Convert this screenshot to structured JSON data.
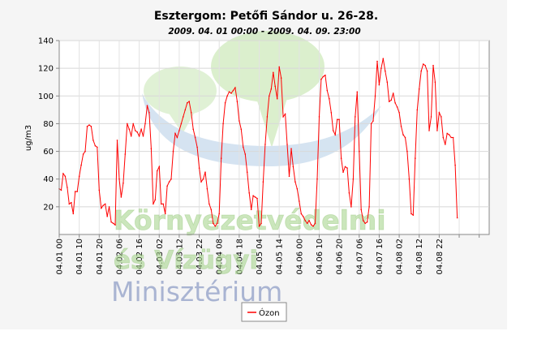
{
  "chart_data": {
    "type": "line",
    "title": "Esztergom: Petőfi Sándor u. 26-28.",
    "subtitle": "2009. 04. 01 00:00 - 2009. 04. 09. 23:00",
    "ylabel": "ug/m3",
    "xlabel": "",
    "ylim": [
      0,
      140
    ],
    "yticks": [
      20,
      40,
      60,
      80,
      100,
      120,
      140
    ],
    "xlim": [
      0,
      215
    ],
    "x_tick_hours": [
      0,
      10,
      20,
      30,
      40,
      50,
      60,
      70,
      80,
      90,
      100,
      110,
      120,
      130,
      140,
      150,
      160,
      170,
      180,
      190,
      200,
      210
    ],
    "x_tick_labels": [
      "04.01 00",
      "04.01 10",
      "04.01 20",
      "04.02 06",
      "04.02 16",
      "04.03 02",
      "04.03 12",
      "04.03 22",
      "04.04 08",
      "04.04 18",
      "04.05 04",
      "04.05 14",
      "04.06 00",
      "04.06 10",
      "04.06 20",
      "04.07 06",
      "04.07 16",
      "04.08 02",
      "04.08 12",
      "04.08 22",
      "",
      ""
    ],
    "grid": true,
    "legend": "bottom-center",
    "series": [
      {
        "name": "Ózon",
        "color": "#ff0000",
        "points": [
          [
            0,
            33
          ],
          [
            1,
            32
          ],
          [
            2,
            44
          ],
          [
            3,
            42
          ],
          [
            4,
            34
          ],
          [
            5,
            22
          ],
          [
            6,
            23
          ],
          [
            7,
            15
          ],
          [
            8,
            31
          ],
          [
            9,
            31
          ],
          [
            10,
            42
          ],
          [
            11,
            50
          ],
          [
            12,
            58
          ],
          [
            13,
            60
          ],
          [
            14,
            78
          ],
          [
            15,
            79
          ],
          [
            16,
            78
          ],
          [
            17,
            68
          ],
          [
            18,
            64
          ],
          [
            19,
            63
          ],
          [
            20,
            32
          ],
          [
            21,
            19
          ],
          [
            22,
            21
          ],
          [
            23,
            22
          ],
          [
            24,
            13
          ],
          [
            25,
            20
          ],
          [
            26,
            9
          ],
          [
            27,
            8
          ],
          [
            28,
            7
          ],
          [
            29,
            68
          ],
          [
            30,
            40
          ],
          [
            31,
            27
          ],
          [
            32,
            37
          ],
          [
            33,
            58
          ],
          [
            34,
            80
          ],
          [
            35,
            76
          ],
          [
            36,
            71
          ],
          [
            37,
            80
          ],
          [
            38,
            75
          ],
          [
            39,
            74
          ],
          [
            40,
            71
          ],
          [
            41,
            76
          ],
          [
            42,
            71
          ],
          [
            43,
            80
          ],
          [
            44,
            93
          ],
          [
            45,
            88
          ],
          [
            46,
            62
          ],
          [
            47,
            22
          ],
          [
            48,
            25
          ],
          [
            49,
            46
          ],
          [
            50,
            49
          ],
          [
            51,
            22
          ],
          [
            52,
            22
          ],
          [
            53,
            15
          ],
          [
            54,
            35
          ],
          [
            55,
            38
          ],
          [
            56,
            40
          ],
          [
            57,
            60
          ],
          [
            58,
            73
          ],
          [
            59,
            70
          ],
          [
            60,
            75
          ],
          [
            61,
            80
          ],
          [
            62,
            85
          ],
          [
            63,
            90
          ],
          [
            64,
            95
          ],
          [
            65,
            96
          ],
          [
            66,
            88
          ],
          [
            67,
            76
          ],
          [
            68,
            70
          ],
          [
            69,
            63
          ],
          [
            70,
            48
          ],
          [
            71,
            38
          ],
          [
            72,
            40
          ],
          [
            73,
            45
          ],
          [
            74,
            33
          ],
          [
            75,
            22
          ],
          [
            76,
            18
          ],
          [
            77,
            8
          ],
          [
            78,
            6
          ],
          [
            79,
            8
          ],
          [
            80,
            15
          ],
          [
            81,
            55
          ],
          [
            82,
            80
          ],
          [
            83,
            95
          ],
          [
            84,
            100
          ],
          [
            85,
            103
          ],
          [
            86,
            102
          ],
          [
            87,
            104
          ],
          [
            88,
            106
          ],
          [
            89,
            96
          ],
          [
            90,
            82
          ],
          [
            91,
            76
          ],
          [
            92,
            63
          ],
          [
            93,
            58
          ],
          [
            94,
            45
          ],
          [
            95,
            30
          ],
          [
            96,
            18
          ],
          [
            97,
            28
          ],
          [
            98,
            27
          ],
          [
            99,
            26
          ],
          [
            100,
            6
          ],
          [
            101,
            8
          ],
          [
            102,
            38
          ],
          [
            103,
            65
          ],
          [
            104,
            85
          ],
          [
            105,
            100
          ],
          [
            106,
            105
          ],
          [
            107,
            117
          ],
          [
            108,
            107
          ],
          [
            109,
            98
          ],
          [
            110,
            121
          ],
          [
            111,
            113
          ],
          [
            112,
            85
          ],
          [
            113,
            87
          ],
          [
            114,
            65
          ],
          [
            115,
            42
          ],
          [
            116,
            62
          ],
          [
            117,
            49
          ],
          [
            118,
            38
          ],
          [
            119,
            33
          ],
          [
            120,
            24
          ],
          [
            121,
            15
          ],
          [
            122,
            13
          ],
          [
            123,
            10
          ],
          [
            124,
            8
          ],
          [
            125,
            10
          ],
          [
            126,
            7
          ],
          [
            127,
            6
          ],
          [
            128,
            8
          ],
          [
            129,
            40
          ],
          [
            130,
            85
          ],
          [
            131,
            112
          ],
          [
            132,
            114
          ],
          [
            133,
            115
          ],
          [
            134,
            104
          ],
          [
            135,
            98
          ],
          [
            136,
            88
          ],
          [
            137,
            75
          ],
          [
            138,
            72
          ],
          [
            139,
            83
          ],
          [
            140,
            83
          ],
          [
            141,
            55
          ],
          [
            142,
            45
          ],
          [
            143,
            49
          ],
          [
            144,
            48
          ],
          [
            145,
            30
          ],
          [
            146,
            20
          ],
          [
            147,
            40
          ],
          [
            148,
            85
          ],
          [
            149,
            103
          ],
          [
            150,
            60
          ],
          [
            151,
            18
          ],
          [
            152,
            10
          ],
          [
            153,
            8
          ],
          [
            154,
            9
          ],
          [
            155,
            20
          ],
          [
            156,
            80
          ],
          [
            157,
            82
          ],
          [
            158,
            100
          ],
          [
            159,
            125
          ],
          [
            160,
            108
          ],
          [
            161,
            120
          ],
          [
            162,
            127
          ],
          [
            163,
            118
          ],
          [
            164,
            110
          ],
          [
            165,
            96
          ],
          [
            166,
            97
          ],
          [
            167,
            102
          ],
          [
            168,
            95
          ],
          [
            169,
            92
          ],
          [
            170,
            88
          ],
          [
            171,
            78
          ],
          [
            172,
            72
          ],
          [
            173,
            70
          ],
          [
            174,
            60
          ],
          [
            175,
            40
          ],
          [
            176,
            15
          ],
          [
            177,
            14
          ],
          [
            178,
            55
          ],
          [
            179,
            90
          ],
          [
            180,
            105
          ],
          [
            181,
            118
          ],
          [
            182,
            123
          ],
          [
            183,
            122
          ],
          [
            184,
            118
          ],
          [
            185,
            75
          ],
          [
            186,
            85
          ],
          [
            187,
            122
          ],
          [
            188,
            110
          ],
          [
            189,
            75
          ],
          [
            190,
            88
          ],
          [
            191,
            85
          ],
          [
            192,
            70
          ],
          [
            193,
            65
          ],
          [
            194,
            73
          ],
          [
            195,
            72
          ],
          [
            196,
            70
          ],
          [
            197,
            70
          ],
          [
            198,
            50
          ],
          [
            199,
            12
          ]
        ]
      }
    ],
    "watermark": {
      "line1": "Környezetvédelmi",
      "line2": "és Vízügyi",
      "line3": "Minisztérium"
    }
  }
}
